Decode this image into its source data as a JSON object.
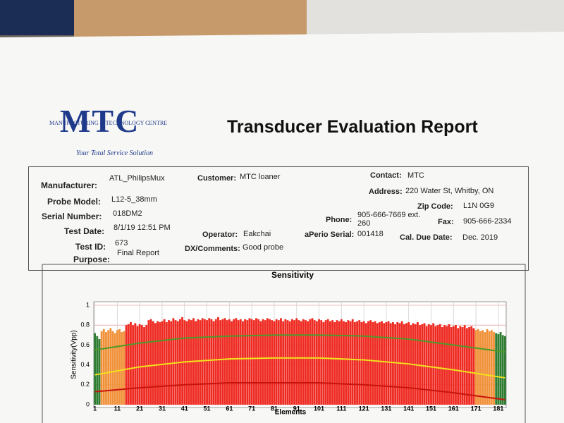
{
  "header": {
    "logo": "MTC",
    "logo_subtitle": "MANUFACTURING & TECHNOLOGY CENTRE",
    "tagline": "Your Total Service Solution",
    "title": "Transducer Evaluation Report"
  },
  "info": {
    "manufacturer": {
      "label": "Manufacturer:",
      "value": "ATL_PhilipsMux"
    },
    "probe_model": {
      "label": "Probe Model:",
      "value": "L12-5_38mm"
    },
    "serial_number": {
      "label": "Serial Number:",
      "value": "018DM2"
    },
    "test_date": {
      "label": "Test Date:",
      "value": "8/1/19 12:51 PM"
    },
    "test_id": {
      "label": "Test ID:",
      "value": "673"
    },
    "purpose": {
      "label": "Purpose:",
      "value": "Final Report"
    },
    "customer": {
      "label": "Customer:",
      "value": "MTC loaner"
    },
    "operator": {
      "label": "Operator:",
      "value": "Eakchai"
    },
    "comments": {
      "label": "DX/Comments:",
      "value": "Good probe"
    },
    "contact": {
      "label": "Contact:",
      "value": "MTC"
    },
    "address": {
      "label": "Address:",
      "value": "220 Water St, Whitby, ON"
    },
    "zip": {
      "label": "Zip Code:",
      "value": "L1N 0G9"
    },
    "phone": {
      "label": "Phone:",
      "value": "905-666-7669 ext. 260"
    },
    "fax": {
      "label": "Fax:",
      "value": "905-666-2334"
    },
    "aperio_serial": {
      "label": "aPerio Serial:",
      "value": "001418"
    },
    "cal_due": {
      "label": "Cal. Due Date:",
      "value": "Dec. 2019"
    }
  },
  "chart_data": {
    "type": "bar",
    "title": "Sensitivity",
    "x_label": "Elements",
    "y_label": "Sensitivity(Vpp)",
    "xlim": [
      0.5,
      184.5
    ],
    "xticks": [
      1,
      11,
      21,
      31,
      41,
      51,
      61,
      71,
      81,
      91,
      101,
      111,
      121,
      131,
      141,
      151,
      161,
      171,
      181
    ],
    "ylim": [
      0,
      1
    ],
    "yticks": [
      0,
      0.2,
      0.4,
      0.6,
      0.8,
      1
    ],
    "grid": true,
    "color_bands": [
      {
        "from": 1,
        "to": 3,
        "color": "#2e7d32"
      },
      {
        "from": 4,
        "to": 14,
        "color": "#f0913a"
      },
      {
        "from": 15,
        "to": 170,
        "color": "#ee2b22"
      },
      {
        "from": 171,
        "to": 179,
        "color": "#f0913a"
      },
      {
        "from": 180,
        "to": 184,
        "color": "#2e7d32"
      }
    ],
    "values": [
      0.72,
      0.69,
      0.66,
      0.74,
      0.76,
      0.73,
      0.75,
      0.77,
      0.74,
      0.72,
      0.75,
      0.76,
      0.73,
      0.74,
      0.8,
      0.81,
      0.83,
      0.8,
      0.82,
      0.79,
      0.81,
      0.8,
      0.78,
      0.8,
      0.85,
      0.86,
      0.84,
      0.82,
      0.84,
      0.83,
      0.84,
      0.86,
      0.83,
      0.85,
      0.84,
      0.87,
      0.85,
      0.84,
      0.86,
      0.88,
      0.85,
      0.84,
      0.86,
      0.85,
      0.87,
      0.84,
      0.86,
      0.85,
      0.87,
      0.86,
      0.85,
      0.87,
      0.86,
      0.84,
      0.86,
      0.88,
      0.85,
      0.86,
      0.87,
      0.85,
      0.86,
      0.84,
      0.86,
      0.87,
      0.85,
      0.86,
      0.84,
      0.86,
      0.85,
      0.87,
      0.86,
      0.85,
      0.87,
      0.86,
      0.84,
      0.86,
      0.85,
      0.87,
      0.86,
      0.85,
      0.84,
      0.86,
      0.85,
      0.87,
      0.84,
      0.86,
      0.85,
      0.84,
      0.86,
      0.85,
      0.87,
      0.85,
      0.84,
      0.86,
      0.85,
      0.84,
      0.86,
      0.87,
      0.85,
      0.84,
      0.86,
      0.85,
      0.83,
      0.85,
      0.86,
      0.84,
      0.85,
      0.83,
      0.85,
      0.84,
      0.86,
      0.84,
      0.83,
      0.85,
      0.84,
      0.86,
      0.83,
      0.84,
      0.85,
      0.83,
      0.84,
      0.82,
      0.84,
      0.85,
      0.83,
      0.84,
      0.82,
      0.83,
      0.84,
      0.82,
      0.83,
      0.84,
      0.82,
      0.83,
      0.81,
      0.83,
      0.82,
      0.84,
      0.81,
      0.82,
      0.83,
      0.8,
      0.82,
      0.81,
      0.83,
      0.8,
      0.81,
      0.82,
      0.79,
      0.81,
      0.8,
      0.82,
      0.79,
      0.8,
      0.81,
      0.78,
      0.8,
      0.79,
      0.81,
      0.78,
      0.79,
      0.8,
      0.77,
      0.79,
      0.78,
      0.8,
      0.77,
      0.78,
      0.79,
      0.77,
      0.75,
      0.76,
      0.74,
      0.75,
      0.73,
      0.76,
      0.74,
      0.75,
      0.73,
      0.72,
      0.71,
      0.73,
      0.7,
      0.69
    ],
    "lines": [
      {
        "color": "#4f9a2a",
        "x": [
          1,
          21,
          41,
          61,
          81,
          101,
          121,
          141,
          161,
          184
        ],
        "values": [
          0.55,
          0.62,
          0.67,
          0.69,
          0.7,
          0.7,
          0.69,
          0.66,
          0.6,
          0.53
        ]
      },
      {
        "color": "#f2e21c",
        "x": [
          1,
          21,
          41,
          61,
          81,
          101,
          121,
          141,
          161,
          184
        ],
        "values": [
          0.3,
          0.38,
          0.43,
          0.46,
          0.47,
          0.47,
          0.45,
          0.41,
          0.35,
          0.27
        ]
      },
      {
        "color": "#c8140c",
        "x": [
          1,
          21,
          41,
          61,
          81,
          101,
          121,
          141,
          161,
          184
        ],
        "values": [
          0.13,
          0.17,
          0.2,
          0.22,
          0.22,
          0.22,
          0.2,
          0.17,
          0.12,
          0.05
        ]
      }
    ]
  }
}
